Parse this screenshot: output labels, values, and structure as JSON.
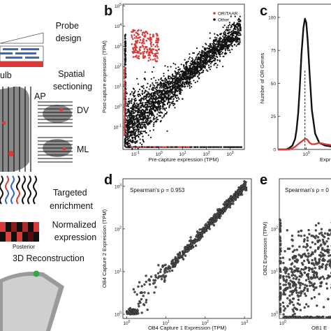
{
  "panel_a": {
    "steps": [
      "Probe design",
      "Spatial sectioning",
      "Targeted enrichment",
      "Normalized expression",
      "3D Reconstruction"
    ],
    "step_lines": [
      [
        "Probe",
        "design"
      ],
      [
        "Spatial",
        "sectioning"
      ],
      [
        "Targeted",
        "enrichment"
      ],
      [
        "Normalized",
        "expression"
      ],
      [
        "3D Reconstruction"
      ]
    ],
    "bulb_label": "ulb",
    "axis_ap": "AP",
    "axis_dv": "DV",
    "axis_ml": "ML",
    "posterior_label": "Posterior"
  },
  "colors": {
    "or_taar": "#d93a3a",
    "other": "#111111",
    "gray_tissue": "#8a8a8a",
    "probe_blue": "#3a66c9"
  },
  "chart_data": [
    {
      "panel": "b",
      "type": "scatter",
      "xlabel": "Pre-capture expression (TPM)",
      "ylabel": "Post-capture expression (TPM)",
      "xscale": "log",
      "yscale": "log",
      "xlim": [
        0.03,
        4000
      ],
      "ylim": [
        0.008,
        120000
      ],
      "xticks": [
        "10^-1",
        "10^0",
        "10^1",
        "10^2",
        "10^3"
      ],
      "yticks": [
        "10^-1",
        "10^0",
        "10^1",
        "10^2",
        "10^3",
        "10^4",
        "10^5"
      ],
      "legend": {
        "position": "top-right",
        "entries": [
          "OR/TAAR",
          "Other"
        ]
      },
      "series": [
        {
          "name": "Other",
          "color": "#111111",
          "trend": "y ≈ 2.5·x, log-normal scatter"
        },
        {
          "name": "OR/TAAR",
          "color": "#d93a3a",
          "cluster_x": [
            0.07,
            1.0
          ],
          "cluster_y": [
            300,
            8000
          ]
        }
      ]
    },
    {
      "panel": "c",
      "type": "line",
      "ylabel": "Number of OR Genes",
      "xlabel": "Expr",
      "xscale": "log",
      "xlim": [
        0.03,
        30
      ],
      "ylim": [
        0,
        110
      ],
      "yticks": [
        0,
        25,
        50,
        75,
        100
      ],
      "xticks": [
        "10^0"
      ],
      "x": [
        0.03,
        0.05,
        0.08,
        0.12,
        0.18,
        0.25,
        0.3,
        0.37,
        0.45,
        0.55,
        0.7,
        0.85,
        1.0,
        1.2,
        1.5,
        2.0,
        3.0,
        5.0,
        10.0,
        30.0
      ],
      "series": [
        {
          "color": "#111111",
          "values": [
            0,
            0,
            0,
            1,
            3,
            8,
            15,
            28,
            48,
            72,
            92,
            99,
            96,
            82,
            58,
            30,
            12,
            5,
            3,
            2
          ]
        },
        {
          "color": "#d93a3a",
          "values": [
            0,
            0,
            0,
            0,
            1,
            2,
            3,
            4,
            5,
            6,
            7,
            8,
            8,
            7,
            5,
            4,
            4,
            5,
            4,
            3
          ]
        }
      ],
      "dashed_marker_x": 0.85
    },
    {
      "panel": "d",
      "type": "scatter",
      "xlabel": "OB4 Capture 1 Expression (TPM)",
      "ylabel": "OB4 Capture 2 Expression (TPM)",
      "xscale": "log",
      "yscale": "log",
      "xlim": [
        0.8,
        1500
      ],
      "ylim": [
        0.8,
        1500
      ],
      "xticks": [
        "10^0",
        "10^1",
        "10^2",
        "10^3"
      ],
      "yticks": [
        "10^0",
        "10^1",
        "10^2",
        "10^3"
      ],
      "annotation": "Spearman's ρ = 0.953",
      "series": [
        {
          "color": "#111111",
          "trend": "y ≈ x, tight scatter"
        }
      ]
    },
    {
      "panel": "e",
      "type": "scatter",
      "xlabel": "OB1 E",
      "ylabel": "OB2 Expression (TPM)",
      "xscale": "log",
      "yscale": "log",
      "xlim": [
        0.8,
        30
      ],
      "ylim": [
        0.8,
        1500
      ],
      "xticks": [
        "10^0"
      ],
      "yticks": [
        "10^0",
        "10^1",
        "10^2"
      ],
      "annotation": "Spearman's ρ = 0",
      "series": [
        {
          "color": "#111111",
          "trend": "weak correlation, wide scatter"
        }
      ]
    }
  ]
}
